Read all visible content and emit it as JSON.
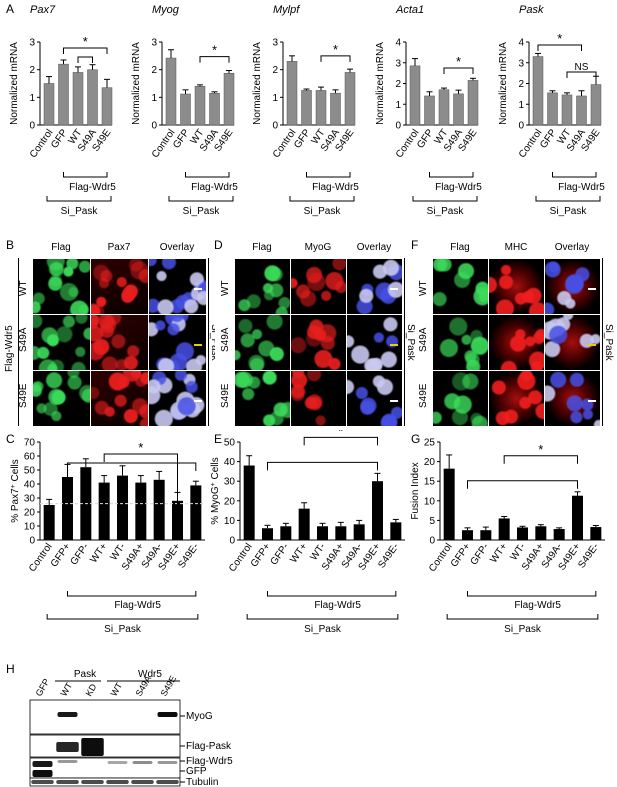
{
  "panels": {
    "A": "A",
    "B": "B",
    "C": "C",
    "D": "D",
    "E": "E",
    "F": "F",
    "G": "G",
    "H": "H"
  },
  "panelA": {
    "ylabel": "Normalized mRNA",
    "categories": [
      "Control",
      "GFP",
      "WT",
      "S49A",
      "S49E"
    ],
    "group_label": "Flag-Wdr5",
    "si_label": "Si_Pask",
    "charts": [
      {
        "gene": "Pax7",
        "ylim": [
          0,
          3
        ],
        "ticks": [
          0,
          1,
          2,
          3
        ],
        "values": [
          1.5,
          2.2,
          1.9,
          2.0,
          1.35
        ],
        "errors": [
          0.25,
          0.15,
          0.2,
          0.18,
          0.3
        ],
        "sig": [
          {
            "from": 1,
            "to": 4,
            "label": "*"
          },
          {
            "from": 2,
            "to": 3,
            "label": ""
          }
        ]
      },
      {
        "gene": "Myog",
        "ylim": [
          0,
          3
        ],
        "ticks": [
          0,
          1,
          2,
          3
        ],
        "values": [
          2.42,
          1.12,
          1.4,
          1.15,
          1.87
        ],
        "errors": [
          0.3,
          0.15,
          0.05,
          0.05,
          0.1
        ],
        "sig": [
          {
            "from": 2,
            "to": 4,
            "label": "*"
          }
        ]
      },
      {
        "gene": "Mylpf",
        "ylim": [
          0,
          3
        ],
        "ticks": [
          0,
          1,
          2,
          3
        ],
        "values": [
          2.3,
          1.25,
          1.25,
          1.15,
          1.9
        ],
        "errors": [
          0.2,
          0.05,
          0.12,
          0.12,
          0.12
        ],
        "sig": [
          {
            "from": 2,
            "to": 4,
            "label": "*"
          }
        ]
      },
      {
        "gene": "Acta1",
        "ylim": [
          0,
          4
        ],
        "ticks": [
          0,
          1,
          2,
          3,
          4
        ],
        "values": [
          2.85,
          1.4,
          1.7,
          1.5,
          2.15
        ],
        "errors": [
          0.35,
          0.2,
          0.08,
          0.18,
          0.1
        ],
        "sig": [
          {
            "from": 2,
            "to": 4,
            "label": "*"
          }
        ]
      },
      {
        "gene": "Pask",
        "ylim": [
          0,
          4
        ],
        "ticks": [
          0,
          1,
          2,
          3,
          4
        ],
        "values": [
          3.3,
          1.55,
          1.45,
          1.4,
          1.95
        ],
        "errors": [
          0.15,
          0.1,
          0.1,
          0.25,
          0.4
        ],
        "sig": [
          {
            "from": 0,
            "to": 3,
            "label": "*"
          },
          {
            "from": 2,
            "to": 4,
            "label": "NS"
          }
        ]
      }
    ]
  },
  "panelB": {
    "cols": [
      "Flag",
      "Pax7",
      "Overlay"
    ],
    "rows": [
      "WT",
      "S49A",
      "S49E"
    ],
    "left": "Flag-Wdr5",
    "right": "Si_Pask"
  },
  "panelD": {
    "cols": [
      "Flag",
      "MyoG",
      "Overlay"
    ],
    "rows": [
      "WT",
      "S49A",
      "S49E"
    ],
    "right": "Si_Pask"
  },
  "panelF": {
    "cols": [
      "Flag",
      "MHC",
      "Overlay"
    ],
    "rows": [
      "WT",
      "S49A",
      "S49E"
    ],
    "right": "Si_Pask"
  },
  "chart_data": [
    {
      "panel": "C",
      "type": "bar",
      "ylabel": "% Pax7+ Cells",
      "ylabel_main": "% Pax7",
      "ylabel_sup": "+",
      "ylabel_tail": " Cells",
      "ylim": [
        0,
        70
      ],
      "ticks": [
        0,
        10,
        20,
        30,
        40,
        50,
        60,
        70
      ],
      "categories": [
        "Control",
        "GFP+",
        "GFP-",
        "WT+",
        "WT-",
        "S49A+",
        "S49A-",
        "S49E+",
        "S49E-"
      ],
      "values": [
        25,
        45,
        52,
        41,
        46,
        41,
        43,
        28,
        39
      ],
      "errors": [
        4,
        9,
        6,
        5,
        7,
        5,
        6,
        6,
        3
      ],
      "baseline": 26,
      "sig": {
        "from": 3,
        "to": 7,
        "label": "*"
      },
      "bracket": {
        "from": 1,
        "to": 8
      },
      "group_label": "Flag-Wdr5",
      "si_label": "Si_Pask"
    },
    {
      "panel": "E",
      "type": "bar",
      "ylabel": "% MyoG+ Cells",
      "ylabel_main": "% MyoG",
      "ylabel_sup": "+",
      "ylabel_tail": " Cells",
      "ylim": [
        0,
        50
      ],
      "ticks": [
        0,
        10,
        20,
        30,
        40,
        50
      ],
      "categories": [
        "Control",
        "GFP+",
        "GFP-",
        "WT+",
        "WT-",
        "S49A+",
        "S49A-",
        "S49E+",
        "S49E-"
      ],
      "values": [
        38,
        6,
        7,
        16,
        7,
        7,
        8,
        30,
        9
      ],
      "errors": [
        5,
        1.5,
        1.5,
        3,
        1.5,
        2,
        2,
        4,
        1.5
      ],
      "sig": {
        "from": 3,
        "to": 7,
        "label": "*"
      },
      "bracket": {
        "from": 1,
        "to": 7
      },
      "group_label": "Flag-Wdr5",
      "si_label": "Si_Pask"
    },
    {
      "panel": "G",
      "type": "bar",
      "ylabel": "Fusion Index",
      "ylabel_main": "Fusion Index",
      "ylabel_sup": "",
      "ylabel_tail": "",
      "ylim": [
        0,
        25
      ],
      "ticks": [
        0,
        5,
        10,
        15,
        20,
        25
      ],
      "categories": [
        "Control",
        "GFP+",
        "GFP-",
        "WT+",
        "WT-",
        "S49A+",
        "S49A-",
        "S49E+",
        "S49E-"
      ],
      "values": [
        18.2,
        2.5,
        2.5,
        5.5,
        3.2,
        3.5,
        2.8,
        11.3,
        3.3
      ],
      "errors": [
        3.5,
        0.6,
        0.8,
        0.5,
        0.3,
        0.4,
        0.3,
        1,
        0.4
      ],
      "sig": {
        "from": 3,
        "to": 7,
        "label": "*"
      },
      "bracket": {
        "from": 1,
        "to": 7
      },
      "group_label": "Flag-Wdr5",
      "si_label": "Si_Pask"
    }
  ],
  "panelH": {
    "lanes": [
      "GFP",
      "WT",
      "KD",
      "WT",
      "S49A",
      "S49E"
    ],
    "pask_label": "Pask",
    "wdr5_label": "Wdr5",
    "bands": [
      "MyoG",
      "Flag-Pask",
      "Flag-Wdr5",
      "GFP",
      "Tubulin"
    ]
  }
}
